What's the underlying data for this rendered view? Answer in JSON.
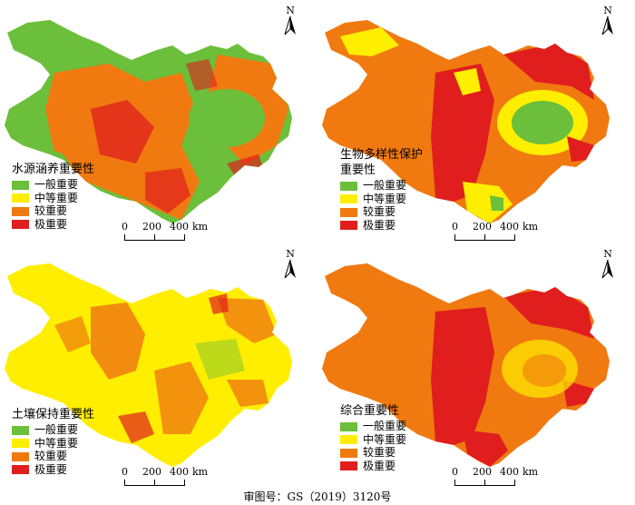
{
  "north_label": "N",
  "legend_classes": [
    {
      "label": "一般重要",
      "color": "#6bbf3a"
    },
    {
      "label": "中等重要",
      "color": "#ffee00"
    },
    {
      "label": "较重要",
      "color": "#f07a10"
    },
    {
      "label": "极重要",
      "color": "#e01e1e"
    }
  ],
  "scale_bar": {
    "ticks": [
      "0",
      "200",
      "400"
    ],
    "unit": "km"
  },
  "panels": [
    {
      "title": "水源涵养重要性",
      "title_line2": ""
    },
    {
      "title": "生物多样性保护",
      "title_line2": "重要性"
    },
    {
      "title": "土壤保持重要性",
      "title_line2": ""
    },
    {
      "title": "综合重要性",
      "title_line2": ""
    }
  ],
  "footer": "审图号：GS（2019）3120号"
}
